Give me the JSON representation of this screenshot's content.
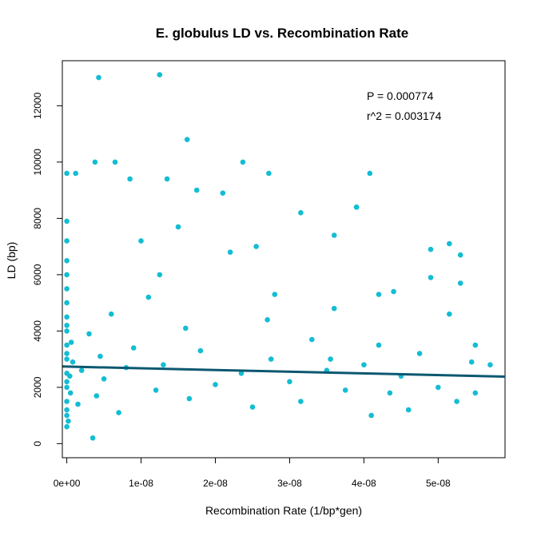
{
  "chart_data": {
    "type": "scatter",
    "title": "E. globulus LD vs. Recombination Rate",
    "xlabel": "Recombination Rate (1/bp*gen)",
    "ylabel": "LD (bp)",
    "xlim": [
      -6e-10,
      5.9e-08
    ],
    "ylim": [
      -500,
      13600
    ],
    "x_ticks": [
      0,
      1e-08,
      2e-08,
      3e-08,
      4e-08,
      5e-08
    ],
    "x_tick_labels": [
      "0e+00",
      "1e-08",
      "2e-08",
      "3e-08",
      "4e-08",
      "5e-08"
    ],
    "y_ticks": [
      0,
      2000,
      4000,
      6000,
      8000,
      10000,
      12000
    ],
    "y_tick_labels": [
      "0",
      "2000",
      "4000",
      "6000",
      "8000",
      "10000",
      "12000"
    ],
    "grid": false,
    "point_color": "#13BDD3",
    "line_color": "#0B5870",
    "annotations": [
      "P = 0.000774",
      "r^2 = 0.003174"
    ],
    "regression": {
      "x": [
        -6e-10,
        5.9e-08
      ],
      "y": [
        2740,
        2380
      ]
    },
    "series": [
      {
        "x": [
          0,
          0,
          0,
          0,
          0,
          0,
          0,
          0,
          0,
          0,
          0,
          0,
          0,
          0,
          0,
          0,
          0,
          0,
          0,
          0,
          2e-10,
          4e-10,
          5e-10,
          6e-10,
          8e-10,
          1.5e-09,
          2e-09,
          3e-09,
          3.5e-09,
          4e-09,
          4.5e-09,
          5e-09,
          6e-09,
          7e-09,
          8e-09,
          9e-09,
          1.1e-08,
          1.2e-08,
          1.25e-08,
          1.3e-08,
          1.5e-08,
          1.6e-08,
          1.65e-08,
          1.8e-08,
          2e-08,
          2.2e-08,
          2.35e-08,
          2.5e-08,
          2.7e-08,
          2.75e-08,
          3e-08,
          3.15e-08,
          3.3e-08,
          3.5e-08,
          3.6e-08,
          3.75e-08,
          3.9e-08,
          4e-08,
          4.1e-08,
          4.2e-08,
          4.35e-08,
          4.5e-08,
          4.6e-08,
          4.75e-08,
          4.9e-08,
          5e-08,
          5.15e-08,
          5.25e-08,
          5.3e-08,
          5.5e-08,
          5.7e-08,
          4.3e-09,
          1.25e-08,
          1.62e-08,
          6.5e-09,
          1.35e-08,
          2.37e-08,
          2.72e-08,
          4.08e-08,
          3.9e-08,
          3.15e-08,
          2.8e-08,
          1.75e-08,
          2.1e-08,
          3.6e-08,
          4.4e-08,
          4.9e-08,
          5.15e-08,
          5.3e-08,
          5.5e-08,
          1.2e-09,
          3.8e-09,
          8.5e-09,
          1e-08,
          4.2e-08,
          3.55e-08,
          2.55e-08,
          5.45e-08
        ],
        "y": [
          600,
          1000,
          1500,
          2000,
          2500,
          3000,
          3500,
          4000,
          4500,
          5000,
          5500,
          6000,
          6500,
          7200,
          7900,
          9600,
          1200,
          2200,
          3200,
          4200,
          800,
          2400,
          1800,
          3600,
          2900,
          1400,
          2600,
          3900,
          200,
          1700,
          3100,
          2300,
          4600,
          1100,
          2700,
          3400,
          5200,
          1900,
          6000,
          2800,
          7700,
          4100,
          1600,
          3300,
          2100,
          6800,
          2500,
          1300,
          4400,
          3000,
          2200,
          1500,
          3700,
          2600,
          7400,
          1900,
          8400,
          2800,
          1000,
          3500,
          1800,
          2400,
          1200,
          3200,
          5900,
          2000,
          7100,
          1500,
          6700,
          1800,
          2800,
          13000,
          13100,
          10800,
          10000,
          9400,
          10000,
          9600,
          9600,
          8400,
          8200,
          5300,
          9000,
          8900,
          4800,
          5400,
          6900,
          4600,
          5700,
          3500,
          9600,
          10000,
          9400,
          7200,
          5300,
          3000,
          7000,
          2900
        ]
      }
    ]
  }
}
